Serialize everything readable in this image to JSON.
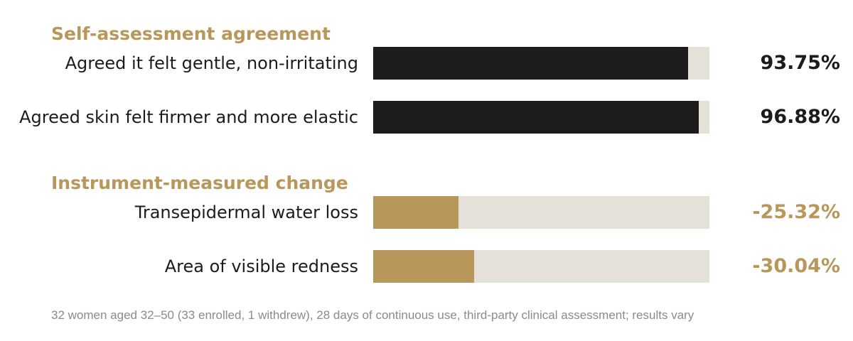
{
  "colors": {
    "accent_gold": "#b8975a",
    "dark": "#1e1c1a",
    "track": "#e6e1d8",
    "footnote": "#8f8a82"
  },
  "chart_data": {
    "type": "bar",
    "orientation": "horizontal",
    "groups": [
      {
        "title": "Self-assessment agreement",
        "color": "#1e1c1a",
        "rows": [
          {
            "label": "Agreed it felt gentle, non-irritating",
            "value": 93.75,
            "value_label": "93.75%"
          },
          {
            "label": "Agreed skin felt firmer and more elastic",
            "value": 96.88,
            "value_label": "96.88%"
          }
        ]
      },
      {
        "title": "Instrument-measured change",
        "color": "#b8975a",
        "rows": [
          {
            "label": "Transepidermal water loss",
            "value": -25.32,
            "value_label": "-25.32%"
          },
          {
            "label": "Area of visible redness",
            "value": -30.04,
            "value_label": "-30.04%"
          }
        ]
      }
    ],
    "xlim": [
      0,
      100
    ],
    "grid": false
  },
  "footnote": "32 women aged 32–50 (33 enrolled, 1 withdrew), 28 days of continuous use, third-party clinical assessment; results vary"
}
